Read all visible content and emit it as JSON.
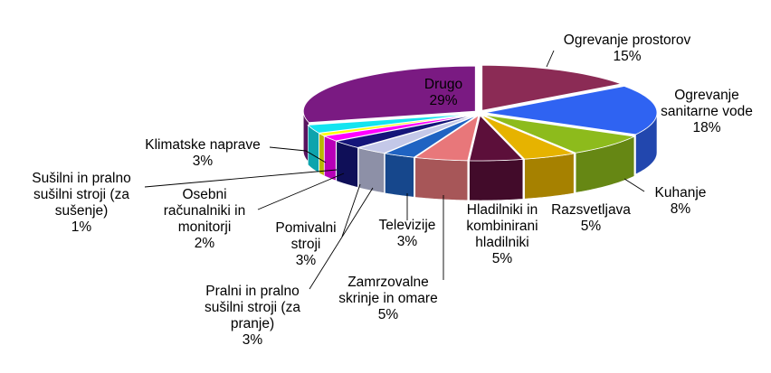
{
  "chart_data": {
    "type": "pie",
    "style": "3d-exploded",
    "slices": [
      {
        "label": "Ogrevanje prostorov",
        "value": 15,
        "display": "15%",
        "color": "#8b2b55"
      },
      {
        "label": "Ogrevanje sanitarne vode",
        "value": 18,
        "display": "18%",
        "color": "#2f63f2"
      },
      {
        "label": "Kuhanje",
        "value": 8,
        "display": "8%",
        "color": "#8dbb1c"
      },
      {
        "label": "Razsvetljava",
        "value": 5,
        "display": "5%",
        "color": "#e6b300"
      },
      {
        "label": "Hladilniki in kombinirani hladilniki",
        "value": 5,
        "display": "5%",
        "color": "#5c0f3a"
      },
      {
        "label": "Zamrzovalne skrinje in omare",
        "value": 5,
        "display": "5%",
        "color": "#e8777a"
      },
      {
        "label": "Televizije",
        "value": 3,
        "display": "3%",
        "color": "#1f63c2"
      },
      {
        "label": "Pralni in pralno sušilni stroji (za pranje)",
        "value": 3,
        "display": "3%",
        "color": "#c4c8e8"
      },
      {
        "label": "Pomivalni stroji",
        "value": 3,
        "display": "3%",
        "color": "#15157a"
      },
      {
        "label": "Osebni računalniki in monitorji",
        "value": 2,
        "display": "2%",
        "color": "#ff00ff"
      },
      {
        "label": "Sušilni in pralno sušilni stroji (za sušenje)",
        "value": 1,
        "display": "1%",
        "color": "#ffff00"
      },
      {
        "label": "Klimatske naprave",
        "value": 3,
        "display": "3%",
        "color": "#14e4f0"
      },
      {
        "label": "Drugo",
        "value": 29,
        "display": "29%",
        "color": "#7a1a82"
      }
    ]
  }
}
